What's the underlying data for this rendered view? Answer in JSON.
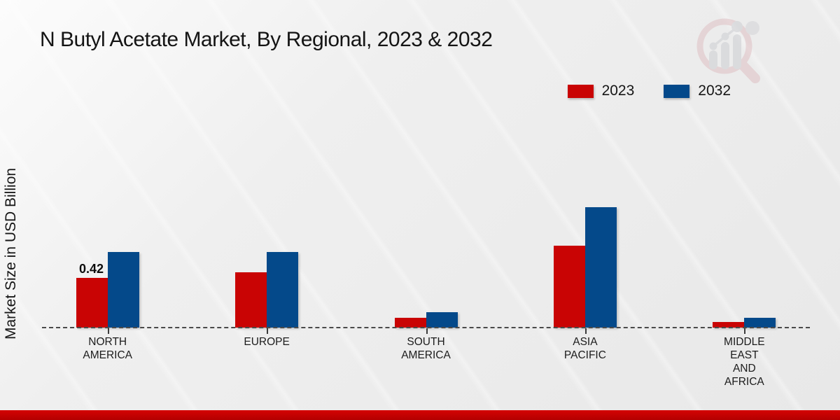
{
  "title": "N Butyl Acetate Market, By Regional, 2023 & 2032",
  "y_axis_label": "Market Size in USD Billion",
  "watermark_icon": "magnifier-bar-chart-logo",
  "footer_color": "#c00000",
  "baseline_color": "#4a4a4a",
  "chart_data": {
    "type": "bar",
    "title": "N Butyl Acetate Market, By Regional, 2023 & 2032",
    "xlabel": "",
    "ylabel": "Market Size in USD Billion",
    "categories": [
      "NORTH AMERICA",
      "EUROPE",
      "SOUTH AMERICA",
      "ASIA PACIFIC",
      "MIDDLE EAST AND AFRICA"
    ],
    "category_lines": [
      [
        "NORTH",
        "AMERICA"
      ],
      [
        "EUROPE"
      ],
      [
        "SOUTH",
        "AMERICA"
      ],
      [
        "ASIA",
        "PACIFIC"
      ],
      [
        "MIDDLE",
        "EAST",
        "AND",
        "AFRICA"
      ]
    ],
    "series": [
      {
        "name": "2023",
        "color": "#c90404",
        "values": [
          0.42,
          0.47,
          0.08,
          0.69,
          0.05
        ],
        "data_labels": [
          "0.42",
          null,
          null,
          null,
          null
        ]
      },
      {
        "name": "2032",
        "color": "#04498a",
        "values": [
          0.64,
          0.64,
          0.13,
          1.02,
          0.08
        ],
        "data_labels": [
          null,
          null,
          null,
          null,
          null
        ]
      }
    ],
    "ylim": [
      0,
      1.15
    ],
    "grid": false,
    "y_axis_ticks_visible": false,
    "baseline_style": "dashed",
    "legend_position": "top-right"
  }
}
